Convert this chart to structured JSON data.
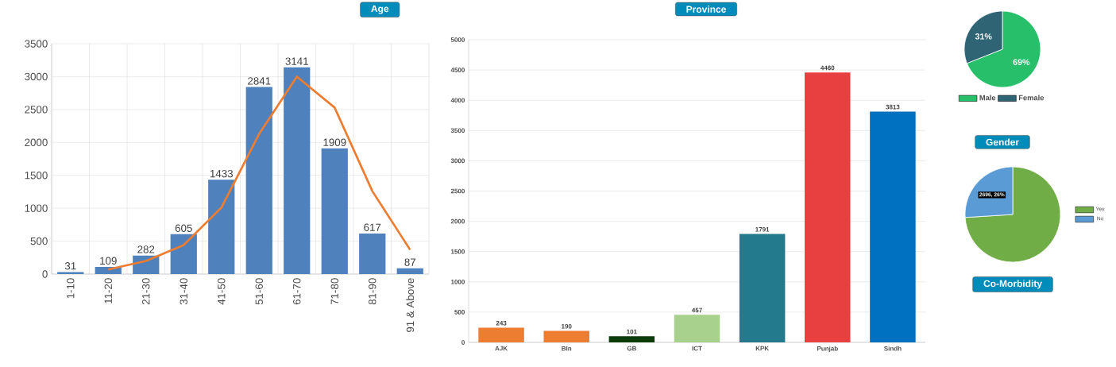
{
  "chart_data": [
    {
      "type": "bar",
      "title": "Age",
      "categories": [
        "1-10",
        "11-20",
        "21-30",
        "31-40",
        "41-50",
        "51-60",
        "61-70",
        "71-80",
        "81-90",
        "91 & Above"
      ],
      "ylim": [
        0,
        3500
      ],
      "yticks": [
        0,
        500,
        1000,
        1500,
        2000,
        2500,
        3000,
        3500
      ],
      "grid": true,
      "legend": false,
      "series": [
        {
          "type": "bar",
          "color": "#4f81bd",
          "values": [
            31,
            109,
            282,
            605,
            1433,
            2841,
            3141,
            1909,
            617,
            87
          ],
          "value_labels": [
            "31",
            "109",
            "282",
            "605",
            "1433",
            "2841",
            "3141",
            "1909",
            "617",
            "87"
          ]
        },
        {
          "type": "line",
          "color": "#ed7d31",
          "values": [
            null,
            70,
            200,
            440,
            1010,
            2130,
            3000,
            2530,
            1260,
            370
          ]
        }
      ]
    },
    {
      "type": "bar",
      "title": "Province",
      "categories": [
        "AJK",
        "Bln",
        "GB",
        "ICT",
        "KPK",
        "Punjab",
        "Sindh"
      ],
      "values": [
        243,
        190,
        101,
        457,
        1791,
        4460,
        3813
      ],
      "colors": [
        "#ed7d31",
        "#ed7d31",
        "#0b3d0b",
        "#a9d18e",
        "#237a8c",
        "#e84040",
        "#0070c0"
      ],
      "ylim": [
        0,
        5000
      ],
      "yticks": [
        0,
        500,
        1000,
        1500,
        2000,
        2500,
        3000,
        3500,
        4000,
        4500,
        5000
      ],
      "grid": "y",
      "data_labels": true,
      "legend": false
    },
    {
      "type": "pie",
      "title": "Gender",
      "categories": [
        "Male",
        "Female"
      ],
      "values": [
        69,
        31
      ],
      "colors": [
        "#27bf6a",
        "#2e6474"
      ],
      "value_labels": [
        "69%",
        "31%"
      ],
      "legend": "bottom"
    },
    {
      "type": "pie",
      "title": "Co-Morbidity",
      "categories": [
        "Yes",
        "No"
      ],
      "values": [
        74,
        26
      ],
      "colors": [
        "#70ad47",
        "#5b9bd5"
      ],
      "value_labels": [
        null,
        "2696, 26%"
      ],
      "legend": "right"
    }
  ]
}
